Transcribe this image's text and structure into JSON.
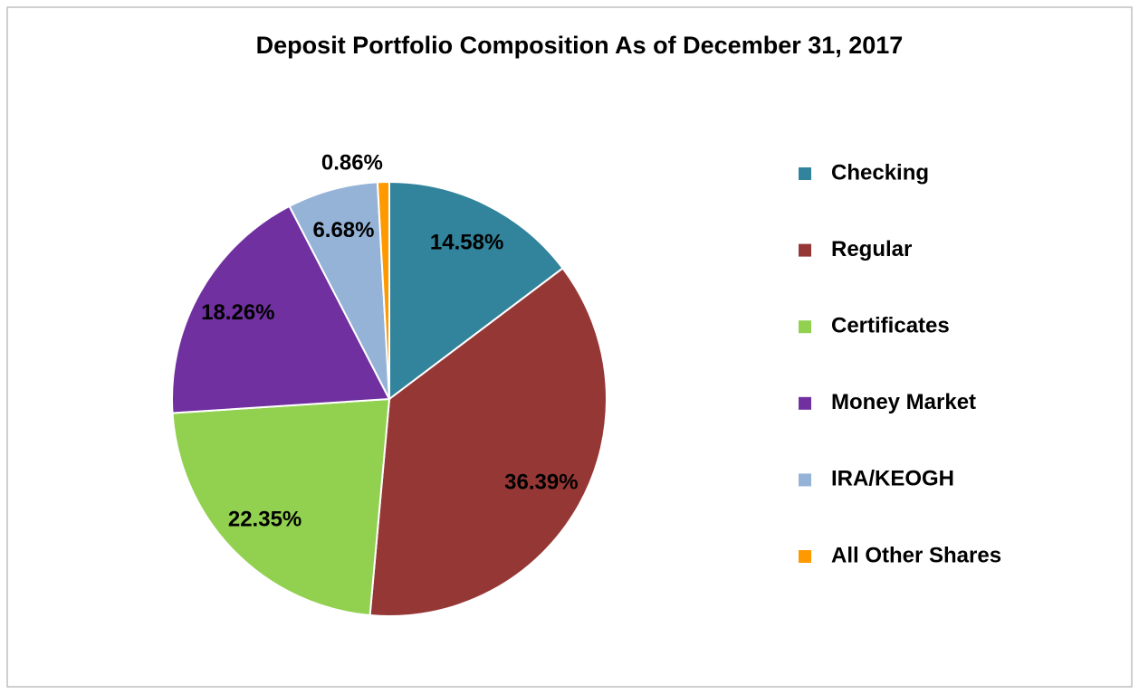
{
  "chart_data": {
    "type": "pie",
    "title": "Deposit Portfolio Composition As of December 31, 2017",
    "categories": [
      "Checking",
      "Regular",
      "Certificates",
      "Money Market",
      "IRA/KEOGH",
      "All Other Shares"
    ],
    "values": [
      14.58,
      36.39,
      22.35,
      18.26,
      6.68,
      0.86
    ],
    "value_labels": [
      "14.58%",
      "36.39%",
      "22.35%",
      "18.26%",
      "6.68%",
      "0.86%"
    ],
    "colors": [
      "#31849b",
      "#953735",
      "#92d050",
      "#7030a0",
      "#95b3d7",
      "#ff9900"
    ],
    "legend": "right"
  }
}
